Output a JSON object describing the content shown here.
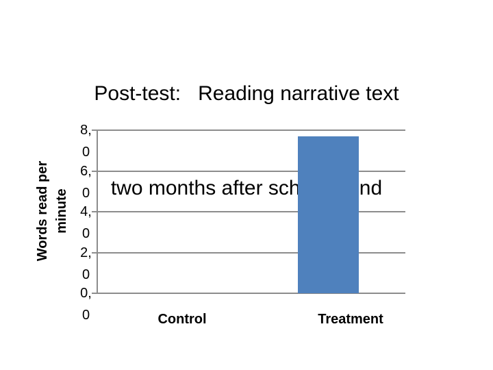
{
  "slide": {
    "title_lines": [
      "Post-test:   Reading narrative text",
      "two months after school’s end"
    ]
  },
  "chart_data": {
    "type": "bar",
    "title": "Post-test: Reading narrative text two months after school’s end",
    "categories": [
      "Control",
      "Treatment"
    ],
    "values": [
      0,
      7.7
    ],
    "xlabel": "",
    "ylabel": "Words read per minute",
    "ylabel_lines": [
      "Words read per",
      "minute"
    ],
    "ylim": [
      0,
      8.0
    ],
    "ytick_values": [
      8.0,
      6.0,
      4.0,
      2.0,
      0.0
    ],
    "ytick_labels": [
      "8,0",
      "6,0",
      "4,0",
      "2,0",
      "0,0"
    ],
    "ytick_labels_wrapped": [
      [
        "8,",
        "0"
      ],
      [
        "6,",
        "0"
      ],
      [
        "4,",
        "0"
      ],
      [
        "2,",
        "0"
      ],
      [
        "0,",
        "0"
      ]
    ],
    "grid": "horizontal",
    "legend": "none",
    "bar_color": "#4f81bd",
    "gridline_color": "#8c8c8c",
    "text_color": "#000000"
  }
}
